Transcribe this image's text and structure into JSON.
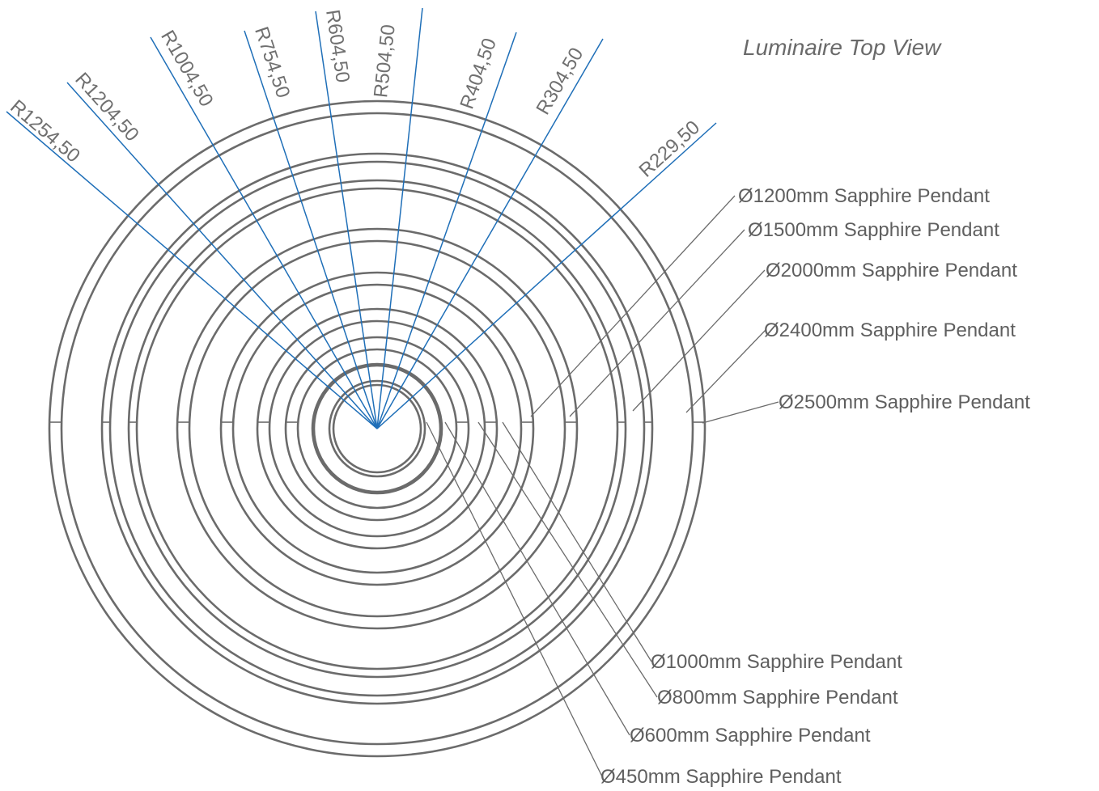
{
  "title": "Luminaire Top View",
  "colors": {
    "ring": "#6b6b6b",
    "radius_line": "#1f6fb8",
    "label": "#5f5f5f"
  },
  "radius_labels": [
    "R1254,50",
    "R1204,50",
    "R1004,50",
    "R754,50",
    "R604,50",
    "R504,50",
    "R404,50",
    "R304,50",
    "R229,50"
  ],
  "pendants_right": [
    "Ø1200mm Sapphire Pendant",
    "Ø1500mm Sapphire Pendant",
    "Ø2000mm Sapphire Pendant",
    "Ø2400mm Sapphire Pendant",
    "Ø2500mm Sapphire Pendant"
  ],
  "pendants_bottom": [
    "Ø1000mm Sapphire Pendant",
    "Ø800mm Sapphire Pendant",
    "Ø600mm Sapphire Pendant",
    "Ø450mm Sapphire Pendant"
  ]
}
